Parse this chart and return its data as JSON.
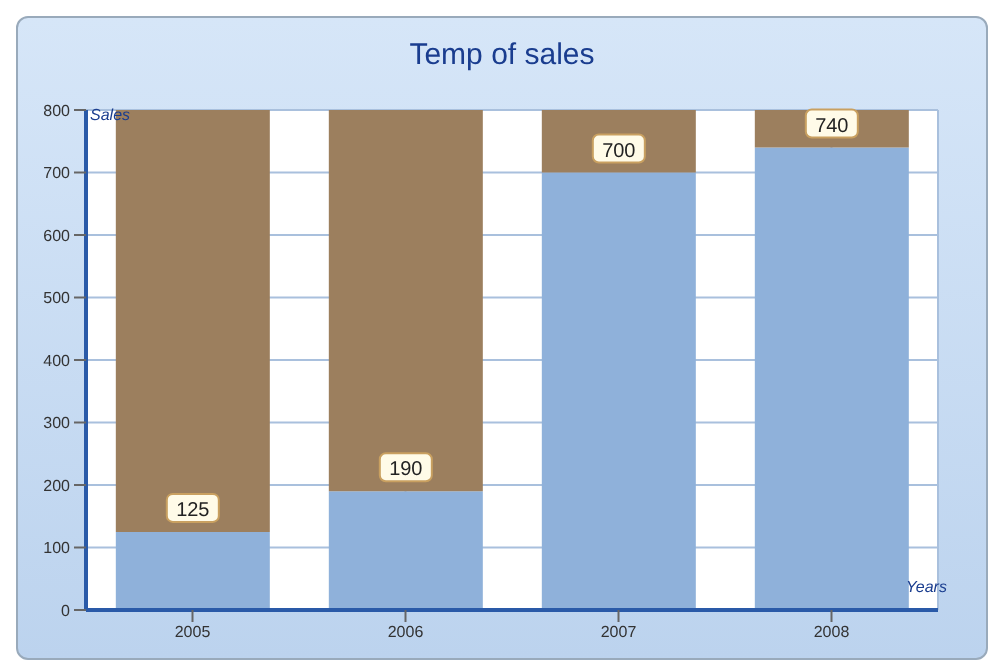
{
  "chart_data": {
    "type": "bar",
    "title": "Temp of sales",
    "xlabel": "Years",
    "ylabel": "Sales",
    "categories": [
      "2005",
      "2006",
      "2007",
      "2008"
    ],
    "stacked": true,
    "series": [
      {
        "color": "#8fb1da",
        "values": [
          125,
          190,
          700,
          740
        ],
        "value_labels": [
          "125",
          "190",
          "700",
          "740"
        ]
      },
      {
        "color": "#9c7f5e",
        "values": [
          675,
          610,
          100,
          60
        ]
      }
    ],
    "ylim": [
      0,
      800
    ],
    "yticks": [
      0,
      100,
      200,
      300,
      400,
      500,
      600,
      700,
      800
    ],
    "grid": true,
    "legend": false
  }
}
